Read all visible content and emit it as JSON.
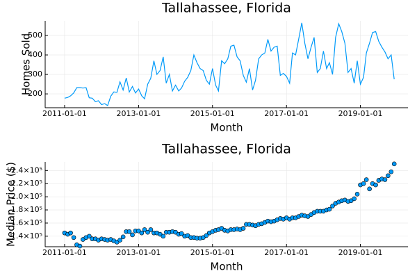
{
  "chart_data": [
    {
      "type": "line",
      "title": "Tallahassee, Florida",
      "xlabel": "Month",
      "ylabel": "Homes Sold",
      "color": "#009af9",
      "grid": true,
      "xlim": [
        "2010-06-23",
        "2020-04-15"
      ],
      "ylim": [
        129,
        575
      ],
      "xticks": [
        "2011-01-01",
        "2013-01-01",
        "2015-01-01",
        "2017-01-01",
        "2019-01-01"
      ],
      "yticks": [
        200,
        300,
        400,
        500
      ],
      "x": [
        "2011-01-01",
        "2011-02-01",
        "2011-03-01",
        "2011-04-01",
        "2011-05-01",
        "2011-06-01",
        "2011-07-01",
        "2011-08-01",
        "2011-09-01",
        "2011-10-01",
        "2011-11-01",
        "2011-12-01",
        "2012-01-01",
        "2012-02-01",
        "2012-03-01",
        "2012-04-01",
        "2012-05-01",
        "2012-06-01",
        "2012-07-01",
        "2012-08-01",
        "2012-09-01",
        "2012-10-01",
        "2012-11-01",
        "2012-12-01",
        "2013-01-01",
        "2013-02-01",
        "2013-03-01",
        "2013-04-01",
        "2013-05-01",
        "2013-06-01",
        "2013-07-01",
        "2013-08-01",
        "2013-09-01",
        "2013-10-01",
        "2013-11-01",
        "2013-12-01",
        "2014-01-01",
        "2014-02-01",
        "2014-03-01",
        "2014-04-01",
        "2014-05-01",
        "2014-06-01",
        "2014-07-01",
        "2014-08-01",
        "2014-09-01",
        "2014-10-01",
        "2014-11-01",
        "2014-12-01",
        "2015-01-01",
        "2015-02-01",
        "2015-03-01",
        "2015-04-01",
        "2015-05-01",
        "2015-06-01",
        "2015-07-01",
        "2015-08-01",
        "2015-09-01",
        "2015-10-01",
        "2015-11-01",
        "2015-12-01",
        "2016-01-01",
        "2016-02-01",
        "2016-03-01",
        "2016-04-01",
        "2016-05-01",
        "2016-06-01",
        "2016-07-01",
        "2016-08-01",
        "2016-09-01",
        "2016-10-01",
        "2016-11-01",
        "2016-12-01",
        "2017-01-01",
        "2017-02-01",
        "2017-03-01",
        "2017-04-01",
        "2017-05-01",
        "2017-06-01",
        "2017-07-01",
        "2017-08-01",
        "2017-09-01",
        "2017-10-01",
        "2017-11-01",
        "2017-12-01",
        "2018-01-01",
        "2018-02-01",
        "2018-03-01",
        "2018-04-01",
        "2018-05-01",
        "2018-06-01",
        "2018-07-01",
        "2018-08-01",
        "2018-09-01",
        "2018-10-01",
        "2018-11-01",
        "2018-12-01",
        "2019-01-01",
        "2019-02-01",
        "2019-03-01",
        "2019-04-01",
        "2019-05-01",
        "2019-06-01",
        "2019-07-01",
        "2019-08-01",
        "2019-09-01",
        "2019-10-01",
        "2019-11-01",
        "2019-12-01"
      ],
      "values": [
        178,
        182,
        190,
        205,
        232,
        232,
        230,
        232,
        180,
        178,
        160,
        165,
        145,
        150,
        140,
        188,
        210,
        208,
        262,
        220,
        282,
        210,
        238,
        205,
        225,
        190,
        175,
        250,
        280,
        370,
        300,
        320,
        390,
        255,
        300,
        215,
        245,
        215,
        230,
        265,
        285,
        320,
        400,
        360,
        330,
        320,
        270,
        250,
        330,
        245,
        215,
        370,
        355,
        380,
        445,
        450,
        390,
        370,
        295,
        260,
        330,
        220,
        270,
        380,
        400,
        410,
        480,
        420,
        440,
        445,
        295,
        305,
        290,
        255,
        410,
        400,
        480,
        565,
        460,
        380,
        440,
        490,
        310,
        330,
        420,
        330,
        360,
        300,
        490,
        560,
        520,
        460,
        310,
        330,
        255,
        370,
        250,
        285,
        410,
        460,
        515,
        520,
        470,
        440,
        415,
        380,
        400,
        275
      ]
    },
    {
      "type": "scatter",
      "title": "Tallahassee, Florida",
      "xlabel": "Month",
      "ylabel": "Median Price ($)",
      "color": "#009af9",
      "grid": true,
      "xlim": [
        "2010-06-23",
        "2020-04-15"
      ],
      "ylim": [
        124000,
        253000
      ],
      "xticks": [
        "2011-01-01",
        "2013-01-01",
        "2015-01-01",
        "2017-01-01",
        "2019-01-01"
      ],
      "yticks": [
        {
          "value": 140000,
          "label": "1.4×10⁵"
        },
        {
          "value": 160000,
          "label": "1.6×10⁵"
        },
        {
          "value": 180000,
          "label": "1.8×10⁵"
        },
        {
          "value": 200000,
          "label": "2.0×10⁵"
        },
        {
          "value": 220000,
          "label": "2.2×10⁵"
        },
        {
          "value": 240000,
          "label": "2.4×10⁵"
        }
      ],
      "x": [
        "2011-01-01",
        "2011-02-01",
        "2011-03-01",
        "2011-04-01",
        "2011-05-01",
        "2011-06-01",
        "2011-07-01",
        "2011-08-01",
        "2011-09-01",
        "2011-10-01",
        "2011-11-01",
        "2011-12-01",
        "2012-01-01",
        "2012-02-01",
        "2012-03-01",
        "2012-04-01",
        "2012-05-01",
        "2012-06-01",
        "2012-07-01",
        "2012-08-01",
        "2012-09-01",
        "2012-10-01",
        "2012-11-01",
        "2012-12-01",
        "2013-01-01",
        "2013-02-01",
        "2013-03-01",
        "2013-04-01",
        "2013-05-01",
        "2013-06-01",
        "2013-07-01",
        "2013-08-01",
        "2013-09-01",
        "2013-10-01",
        "2013-11-01",
        "2013-12-01",
        "2014-01-01",
        "2014-02-01",
        "2014-03-01",
        "2014-04-01",
        "2014-05-01",
        "2014-06-01",
        "2014-07-01",
        "2014-08-01",
        "2014-09-01",
        "2014-10-01",
        "2014-11-01",
        "2014-12-01",
        "2015-01-01",
        "2015-02-01",
        "2015-03-01",
        "2015-04-01",
        "2015-05-01",
        "2015-06-01",
        "2015-07-01",
        "2015-08-01",
        "2015-09-01",
        "2015-10-01",
        "2015-11-01",
        "2015-12-01",
        "2016-01-01",
        "2016-02-01",
        "2016-03-01",
        "2016-04-01",
        "2016-05-01",
        "2016-06-01",
        "2016-07-01",
        "2016-08-01",
        "2016-09-01",
        "2016-10-01",
        "2016-11-01",
        "2016-12-01",
        "2017-01-01",
        "2017-02-01",
        "2017-03-01",
        "2017-04-01",
        "2017-05-01",
        "2017-06-01",
        "2017-07-01",
        "2017-08-01",
        "2017-09-01",
        "2017-10-01",
        "2017-11-01",
        "2017-12-01",
        "2018-01-01",
        "2018-02-01",
        "2018-03-01",
        "2018-04-01",
        "2018-05-01",
        "2018-06-01",
        "2018-07-01",
        "2018-08-01",
        "2018-09-01",
        "2018-10-01",
        "2018-11-01",
        "2018-12-01",
        "2019-01-01",
        "2019-02-01",
        "2019-03-01",
        "2019-04-01",
        "2019-05-01",
        "2019-06-01",
        "2019-07-01",
        "2019-08-01",
        "2019-09-01",
        "2019-10-01",
        "2019-11-01",
        "2019-12-01"
      ],
      "values": [
        145000,
        143000,
        145000,
        138000,
        127000,
        125000,
        135000,
        138000,
        140000,
        136000,
        136000,
        134000,
        136000,
        135000,
        134000,
        135000,
        133000,
        131000,
        134000,
        139000,
        147000,
        147000,
        142000,
        148000,
        148000,
        145000,
        150000,
        146000,
        150000,
        145000,
        145000,
        143000,
        140000,
        146000,
        146000,
        147000,
        146000,
        143000,
        144000,
        140000,
        141000,
        138000,
        138000,
        137000,
        137000,
        138000,
        141000,
        145000,
        147000,
        149000,
        150000,
        152000,
        149000,
        148000,
        150000,
        150000,
        151000,
        150000,
        152000,
        158000,
        158000,
        157000,
        156000,
        158000,
        159000,
        161000,
        163000,
        162000,
        163000,
        165000,
        167000,
        166000,
        168000,
        166000,
        168000,
        168000,
        170000,
        172000,
        171000,
        170000,
        173000,
        176000,
        178000,
        178000,
        178000,
        180000,
        181000,
        186000,
        190000,
        192000,
        194000,
        195000,
        193000,
        194000,
        197000,
        204000,
        218000,
        220000,
        226000,
        212000,
        220000,
        218000,
        225000,
        227000,
        226000,
        232000,
        238000,
        250000
      ]
    }
  ]
}
